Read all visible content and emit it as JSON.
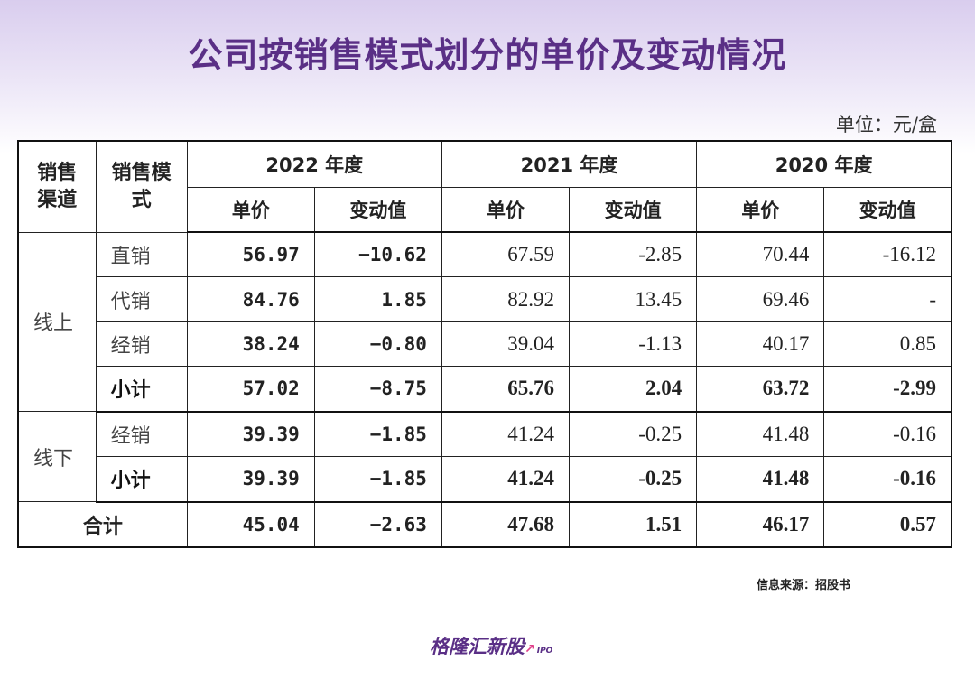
{
  "title": "公司按销售模式划分的单价及变动情况",
  "unit": "单位：元/盒",
  "headers": {
    "channel": "销售渠道",
    "mode": "销售模式",
    "year_2022": "2022 年度",
    "year_2021": "2021 年度",
    "year_2020": "2020 年度",
    "price": "单价",
    "change": "变动值"
  },
  "rows": {
    "online_label": "线上",
    "offline_label": "线下",
    "total_label": "合计",
    "online": [
      {
        "mode": "直销",
        "p22": "56.97",
        "c22": "−10.62",
        "p21": "67.59",
        "c21": "-2.85",
        "p20": "70.44",
        "c20": "-16.12"
      },
      {
        "mode": "代销",
        "p22": "84.76",
        "c22": "1.85",
        "p21": "82.92",
        "c21": "13.45",
        "p20": "69.46",
        "c20": "-"
      },
      {
        "mode": "经销",
        "p22": "38.24",
        "c22": "−0.80",
        "p21": "39.04",
        "c21": "-1.13",
        "p20": "40.17",
        "c20": "0.85"
      },
      {
        "mode": "小计",
        "p22": "57.02",
        "c22": "−8.75",
        "p21": "65.76",
        "c21": "2.04",
        "p20": "63.72",
        "c20": "-2.99"
      }
    ],
    "offline": [
      {
        "mode": "经销",
        "p22": "39.39",
        "c22": "−1.85",
        "p21": "41.24",
        "c21": "-0.25",
        "p20": "41.48",
        "c20": "-0.16"
      },
      {
        "mode": "小计",
        "p22": "39.39",
        "c22": "−1.85",
        "p21": "41.24",
        "c21": "-0.25",
        "p20": "41.48",
        "c20": "-0.16"
      }
    ],
    "total": {
      "p22": "45.04",
      "c22": "−2.63",
      "p21": "47.68",
      "c21": "1.51",
      "p20": "46.17",
      "c20": "0.57"
    }
  },
  "watermark": "格隆汇新股",
  "source": "信息来源：招股书",
  "logo": {
    "text": "格隆汇新股",
    "suffix": "IPO",
    "brand_color": "#5a2f86"
  }
}
